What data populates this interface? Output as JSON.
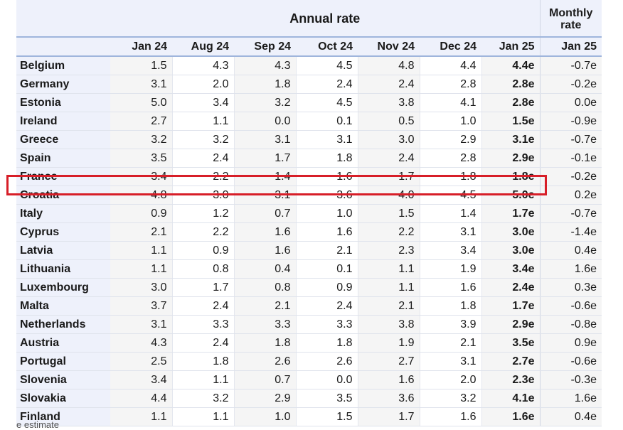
{
  "header": {
    "group_annual": "Annual rate",
    "group_monthly": "Monthly rate",
    "months": [
      "Jan 24",
      "Aug 24",
      "Sep 24",
      "Oct 24",
      "Nov 24",
      "Dec 24",
      "Jan 25"
    ],
    "monthly_month": "Jan 25"
  },
  "rows": [
    {
      "country": "Belgium",
      "values": [
        "1.5",
        "4.3",
        "4.3",
        "4.5",
        "4.8",
        "4.4",
        "4.4e"
      ],
      "monthly": "-0.7e"
    },
    {
      "country": "Germany",
      "values": [
        "3.1",
        "2.0",
        "1.8",
        "2.4",
        "2.4",
        "2.8",
        "2.8e"
      ],
      "monthly": "-0.2e"
    },
    {
      "country": "Estonia",
      "values": [
        "5.0",
        "3.4",
        "3.2",
        "4.5",
        "3.8",
        "4.1",
        "2.8e"
      ],
      "monthly": "0.0e"
    },
    {
      "country": "Ireland",
      "values": [
        "2.7",
        "1.1",
        "0.0",
        "0.1",
        "0.5",
        "1.0",
        "1.5e"
      ],
      "monthly": "-0.9e"
    },
    {
      "country": "Greece",
      "values": [
        "3.2",
        "3.2",
        "3.1",
        "3.1",
        "3.0",
        "2.9",
        "3.1e"
      ],
      "monthly": "-0.7e"
    },
    {
      "country": "Spain",
      "values": [
        "3.5",
        "2.4",
        "1.7",
        "1.8",
        "2.4",
        "2.8",
        "2.9e"
      ],
      "monthly": "-0.1e"
    },
    {
      "country": "France",
      "values": [
        "3.4",
        "2.2",
        "1.4",
        "1.6",
        "1.7",
        "1.8",
        "1.8e"
      ],
      "monthly": "-0.2e"
    },
    {
      "country": "Croatia",
      "values": [
        "4.8",
        "3.0",
        "3.1",
        "3.6",
        "4.0",
        "4.5",
        "5.0e"
      ],
      "monthly": "0.2e"
    },
    {
      "country": "Italy",
      "values": [
        "0.9",
        "1.2",
        "0.7",
        "1.0",
        "1.5",
        "1.4",
        "1.7e"
      ],
      "monthly": "-0.7e"
    },
    {
      "country": "Cyprus",
      "values": [
        "2.1",
        "2.2",
        "1.6",
        "1.6",
        "2.2",
        "3.1",
        "3.0e"
      ],
      "monthly": "-1.4e"
    },
    {
      "country": "Latvia",
      "values": [
        "1.1",
        "0.9",
        "1.6",
        "2.1",
        "2.3",
        "3.4",
        "3.0e"
      ],
      "monthly": "0.4e"
    },
    {
      "country": "Lithuania",
      "values": [
        "1.1",
        "0.8",
        "0.4",
        "0.1",
        "1.1",
        "1.9",
        "3.4e"
      ],
      "monthly": "1.6e"
    },
    {
      "country": "Luxembourg",
      "values": [
        "3.0",
        "1.7",
        "0.8",
        "0.9",
        "1.1",
        "1.6",
        "2.4e"
      ],
      "monthly": "0.3e"
    },
    {
      "country": "Malta",
      "values": [
        "3.7",
        "2.4",
        "2.1",
        "2.4",
        "2.1",
        "1.8",
        "1.7e"
      ],
      "monthly": "-0.6e"
    },
    {
      "country": "Netherlands",
      "values": [
        "3.1",
        "3.3",
        "3.3",
        "3.3",
        "3.8",
        "3.9",
        "2.9e"
      ],
      "monthly": "-0.8e"
    },
    {
      "country": "Austria",
      "values": [
        "4.3",
        "2.4",
        "1.8",
        "1.8",
        "1.9",
        "2.1",
        "3.5e"
      ],
      "monthly": "0.9e"
    },
    {
      "country": "Portugal",
      "values": [
        "2.5",
        "1.8",
        "2.6",
        "2.6",
        "2.7",
        "3.1",
        "2.7e"
      ],
      "monthly": "-0.6e"
    },
    {
      "country": "Slovenia",
      "values": [
        "3.4",
        "1.1",
        "0.7",
        "0.0",
        "1.6",
        "2.0",
        "2.3e"
      ],
      "monthly": "-0.3e"
    },
    {
      "country": "Slovakia",
      "values": [
        "4.4",
        "3.2",
        "2.9",
        "3.5",
        "3.6",
        "3.2",
        "4.1e"
      ],
      "monthly": "1.6e"
    },
    {
      "country": "Finland",
      "values": [
        "1.1",
        "1.1",
        "1.0",
        "1.5",
        "1.7",
        "1.6",
        "1.6e"
      ],
      "monthly": "0.4e"
    }
  ],
  "highlight_color": "#d71e28",
  "footnote": "e estimate"
}
